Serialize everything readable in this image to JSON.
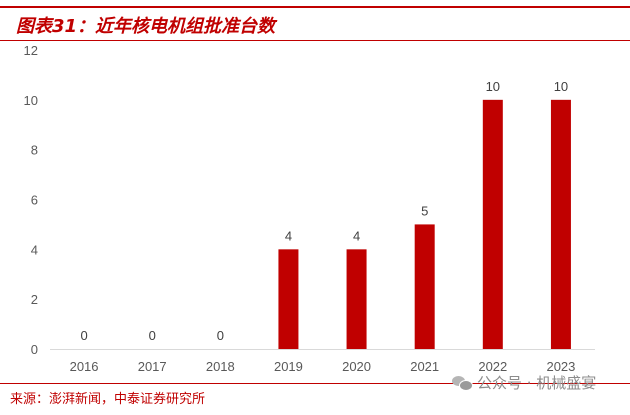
{
  "figure": {
    "title": "图表31：近年核电机组批准台数",
    "source": "来源：澎湃新闻，中泰证券研究所",
    "watermark": "公众号 · 机械盛宴"
  },
  "colors": {
    "accent": "#c00000",
    "bar": "#c00000",
    "axis_text": "#595959",
    "grid_axis": "#d9d9d9"
  },
  "chart_data": {
    "type": "bar",
    "title": "",
    "xlabel": "",
    "ylabel": "",
    "categories": [
      "2016",
      "2017",
      "2018",
      "2019",
      "2020",
      "2021",
      "2022",
      "2023"
    ],
    "values": [
      0,
      0,
      0,
      4,
      4,
      5,
      10,
      10
    ],
    "data_labels": [
      "0",
      "0",
      "0",
      "4",
      "4",
      "5",
      "10",
      "10"
    ],
    "ylim": [
      0,
      12
    ],
    "yticks": [
      0,
      2,
      4,
      6,
      8,
      10,
      12
    ],
    "grid": false,
    "legend": "none"
  }
}
